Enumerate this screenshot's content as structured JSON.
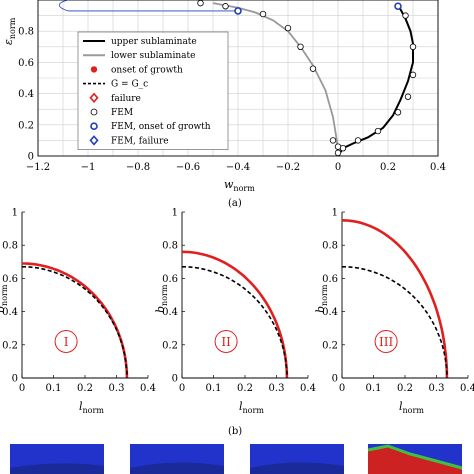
{
  "chart_data": [
    {
      "type": "line",
      "panel": "(a)",
      "xlabel": "w_norm",
      "ylabel": "ε_norm",
      "xlim": [
        -1.2,
        0.4
      ],
      "ylim": [
        0,
        1
      ],
      "xticks": [
        "−1.2",
        "−1",
        "−0.8",
        "−0.6",
        "−0.4",
        "−0.2",
        "0",
        "0.2",
        "0.4"
      ],
      "yticks": [
        "0",
        "0.2",
        "0.4",
        "0.6",
        "0.8"
      ],
      "grid": true,
      "legend_position": "middle-left",
      "legend": [
        {
          "label": "upper sublaminate",
          "marker": "line",
          "color": "#000000"
        },
        {
          "label": "lower sublaminate",
          "marker": "line",
          "color": "#999999"
        },
        {
          "label": "onset of growth",
          "marker": "filled-circle",
          "color": "#e02020"
        },
        {
          "label": "G = G_c",
          "marker": "dashed-line",
          "color": "#000000"
        },
        {
          "label": "failure",
          "marker": "open-diamond",
          "color": "#e02020"
        },
        {
          "label": "FEM",
          "marker": "open-circle",
          "color": "#000000"
        },
        {
          "label": "FEM, onset of growth",
          "marker": "open-circle",
          "color": "#1f3fbf"
        },
        {
          "label": "FEM, failure",
          "marker": "open-diamond",
          "color": "#1f3fbf"
        }
      ],
      "series": [
        {
          "name": "upper sublaminate",
          "color": "#000000",
          "x": [
            0,
            0.02,
            0.06,
            0.12,
            0.18,
            0.22,
            0.25,
            0.28,
            0.3,
            0.3,
            0.29,
            0.27,
            0.25,
            0.24
          ],
          "y": [
            0,
            0.05,
            0.08,
            0.12,
            0.18,
            0.26,
            0.36,
            0.48,
            0.6,
            0.72,
            0.8,
            0.88,
            0.94,
            0.97
          ]
        },
        {
          "name": "lower sublaminate",
          "color": "#999999",
          "x": [
            0,
            -0.005,
            -0.02,
            -0.05,
            -0.1,
            -0.15,
            -0.2,
            -0.26,
            -0.33,
            -0.4,
            -0.5
          ],
          "y": [
            0,
            0.1,
            0.25,
            0.42,
            0.58,
            0.7,
            0.8,
            0.87,
            0.92,
            0.95,
            0.98
          ]
        }
      ],
      "fem_points": [
        {
          "x": 0.02,
          "y": 0.05
        },
        {
          "x": 0.08,
          "y": 0.1
        },
        {
          "x": 0.16,
          "y": 0.16
        },
        {
          "x": 0.24,
          "y": 0.28
        },
        {
          "x": 0.28,
          "y": 0.38
        },
        {
          "x": 0.3,
          "y": 0.52
        },
        {
          "x": 0.3,
          "y": 0.7
        },
        {
          "x": 0.27,
          "y": 0.9
        },
        {
          "x": 0.0,
          "y": 0.02
        },
        {
          "x": 0.0,
          "y": 0.06
        },
        {
          "x": -0.02,
          "y": 0.1
        },
        {
          "x": -0.1,
          "y": 0.56
        },
        {
          "x": -0.15,
          "y": 0.7
        },
        {
          "x": -0.2,
          "y": 0.82
        },
        {
          "x": -0.3,
          "y": 0.91
        },
        {
          "x": -0.45,
          "y": 0.96
        },
        {
          "x": -0.55,
          "y": 0.98
        }
      ],
      "fem_onset_points": [
        {
          "x": -0.4,
          "y": 0.93
        },
        {
          "x": 0.24,
          "y": 0.96
        }
      ]
    },
    {
      "type": "line",
      "panel": "(b) I",
      "xlabel": "l_norm",
      "ylabel": "b_norm",
      "xlim": [
        0,
        0.4
      ],
      "ylim": [
        0,
        1
      ],
      "xticks": [
        "0",
        "0.1",
        "0.2",
        "0.3",
        "0.4"
      ],
      "yticks": [
        "0",
        "0.2",
        "0.4",
        "0.6",
        "0.8",
        "1"
      ],
      "label": "I",
      "series": [
        {
          "name": "failure",
          "color": "#e02020",
          "style": "solid",
          "a": 0.333,
          "b": 0.69
        },
        {
          "name": "G = G_c",
          "color": "#000000",
          "style": "dashed",
          "a": 0.333,
          "b": 0.67
        }
      ]
    },
    {
      "type": "line",
      "panel": "(b) II",
      "xlabel": "l_norm",
      "ylabel": "b_norm",
      "xlim": [
        0,
        0.4
      ],
      "ylim": [
        0,
        1
      ],
      "xticks": [
        "0",
        "0.1",
        "0.2",
        "0.3",
        "0.4"
      ],
      "yticks": [
        "0",
        "0.2",
        "0.4",
        "0.6",
        "0.8",
        "1"
      ],
      "label": "II",
      "series": [
        {
          "name": "failure",
          "color": "#e02020",
          "style": "solid",
          "a": 0.333,
          "b": 0.76
        },
        {
          "name": "G = G_c",
          "color": "#000000",
          "style": "dashed",
          "a": 0.333,
          "b": 0.67
        }
      ]
    },
    {
      "type": "line",
      "panel": "(b) III",
      "xlabel": "l_norm",
      "ylabel": "b_norm",
      "xlim": [
        0,
        0.4
      ],
      "ylim": [
        0,
        1
      ],
      "xticks": [
        "0",
        "0.1",
        "0.2",
        "0.3",
        "0.4"
      ],
      "yticks": [
        "0",
        "0.2",
        "0.4",
        "0.6",
        "0.8",
        "1"
      ],
      "label": "III",
      "series": [
        {
          "name": "failure",
          "color": "#e02020",
          "style": "solid",
          "a": 0.333,
          "b": 0.95
        },
        {
          "name": "G = G_c",
          "color": "#000000",
          "style": "dashed",
          "a": 0.333,
          "b": 0.67
        }
      ]
    }
  ],
  "captions": {
    "a": "(a)",
    "b": "(b)"
  },
  "labels": {
    "top_xlabel": "w",
    "top_xlabel_sub": "norm",
    "top_ylabel": "ε",
    "top_ylabel_sub": "norm",
    "bottom_xlabel": "l",
    "bottom_xlabel_sub": "norm",
    "bottom_ylabel": "b",
    "bottom_ylabel_sub": "norm"
  },
  "colors": {
    "red": "#e02020",
    "blue": "#1f3fbf",
    "gray": "#999999",
    "mesh_blue": "#2233cc",
    "mesh_green": "#40c040"
  }
}
